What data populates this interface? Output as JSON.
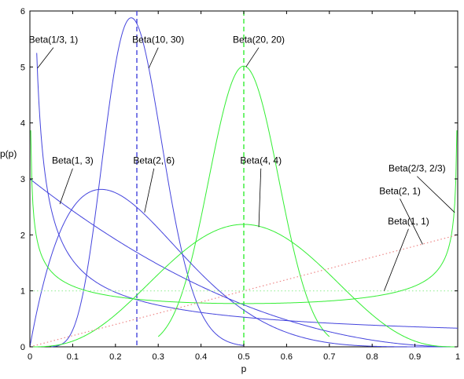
{
  "chart_data": {
    "type": "line",
    "xlabel": "p",
    "ylabel": "p(p)",
    "xlim": [
      0,
      1
    ],
    "ylim": [
      0,
      6
    ],
    "x_ticks": [
      "0",
      "0.1",
      "0.2",
      "0.3",
      "0.4",
      "0.5",
      "0.6",
      "0.7",
      "0.8",
      "0.9",
      "1"
    ],
    "y_ticks": [
      "0",
      "1",
      "2",
      "3",
      "4",
      "5",
      "6"
    ],
    "grid": false,
    "legend": "none",
    "colors": {
      "blue": "#4444dd",
      "green": "#33ee33",
      "dotted_red": "#ee8888",
      "dotted_green": "#99ee99",
      "leader": "#000000"
    },
    "series": [
      {
        "name": "Beta(1/3, 1)",
        "a": 0.3333,
        "b": 1,
        "color": "#4444dd",
        "style": "solid",
        "x": [
          0.016,
          0.05,
          0.1,
          0.2,
          0.3,
          0.4,
          0.5,
          0.6,
          0.7,
          0.8,
          0.9,
          1.0
        ],
        "y": [
          5.5,
          2.46,
          1.55,
          0.97,
          0.74,
          0.61,
          0.53,
          0.47,
          0.42,
          0.39,
          0.35,
          0.33
        ]
      },
      {
        "name": "Beta(10, 30)",
        "a": 10,
        "b": 30,
        "color": "#4444dd",
        "style": "solid",
        "x": [
          0.05,
          0.1,
          0.15,
          0.2,
          0.237,
          0.25,
          0.3,
          0.35,
          0.4,
          0.45,
          0.5
        ],
        "y": [
          0.0,
          0.36,
          2.7,
          5.4,
          5.88,
          5.8,
          3.9,
          1.5,
          0.35,
          0.05,
          0.0
        ]
      },
      {
        "name": "Beta(20, 20)",
        "a": 20,
        "b": 20,
        "color": "#33ee33",
        "style": "solid",
        "x": [
          0.3,
          0.35,
          0.4,
          0.45,
          0.5,
          0.55,
          0.6,
          0.65,
          0.7
        ],
        "y": [
          0.05,
          0.5,
          2.0,
          4.0,
          5.0,
          4.0,
          2.0,
          0.5,
          0.05
        ]
      },
      {
        "name": "Beta(1, 3)",
        "a": 1,
        "b": 3,
        "color": "#4444dd",
        "style": "solid",
        "x": [
          0,
          0.1,
          0.2,
          0.3,
          0.4,
          0.5,
          0.6,
          0.7,
          0.8,
          0.9,
          1
        ],
        "y": [
          3.0,
          2.43,
          1.92,
          1.47,
          1.08,
          0.75,
          0.48,
          0.27,
          0.12,
          0.03,
          0.0
        ]
      },
      {
        "name": "Beta(2, 6)",
        "a": 2,
        "b": 6,
        "color": "#4444dd",
        "style": "solid",
        "x": [
          0,
          0.1,
          0.167,
          0.2,
          0.3,
          0.4,
          0.5,
          0.6,
          0.7,
          0.8,
          1
        ],
        "y": [
          0.0,
          2.48,
          2.8,
          2.75,
          2.06,
          1.31,
          0.66,
          0.24,
          0.05,
          0.01,
          0.0
        ]
      },
      {
        "name": "Beta(4, 4)",
        "a": 4,
        "b": 4,
        "color": "#33ee33",
        "style": "solid",
        "x": [
          0,
          0.1,
          0.2,
          0.3,
          0.4,
          0.5,
          0.6,
          0.7,
          0.8,
          0.9,
          1
        ],
        "y": [
          0.0,
          0.1,
          0.57,
          1.3,
          1.94,
          2.19,
          1.94,
          1.3,
          0.57,
          0.1,
          0.0
        ]
      },
      {
        "name": "Beta(2/3, 2/3)",
        "a": 0.6667,
        "b": 0.6667,
        "color": "#33ee33",
        "style": "solid",
        "x": [
          0.002,
          0.05,
          0.1,
          0.2,
          0.3,
          0.4,
          0.5,
          0.6,
          0.7,
          0.8,
          0.9,
          0.95,
          0.998
        ],
        "y": [
          2.95,
          1.35,
          1.08,
          0.87,
          0.79,
          0.76,
          0.76,
          0.76,
          0.79,
          0.87,
          1.08,
          1.35,
          2.95
        ]
      },
      {
        "name": "Beta(2, 1)",
        "a": 2,
        "b": 1,
        "color": "#ee8888",
        "style": "dotted",
        "x": [
          0,
          0.5,
          1
        ],
        "y": [
          0,
          1,
          2
        ]
      },
      {
        "name": "Beta(1, 1)",
        "a": 1,
        "b": 1,
        "color": "#99ee99",
        "style": "dotted",
        "x": [
          0,
          0.5,
          1
        ],
        "y": [
          1,
          1,
          1
        ]
      }
    ],
    "vlines": [
      {
        "x": 0.25,
        "color": "#4444dd",
        "style": "dashed"
      },
      {
        "x": 0.5,
        "color": "#33ee33",
        "style": "dashed"
      }
    ],
    "annotations": [
      {
        "text": "Beta(1/3, 1)",
        "x": 0.055,
        "y": 5.43,
        "to_x": 0.018,
        "to_y": 4.98
      },
      {
        "text": "Beta(10, 30)",
        "x": 0.3,
        "y": 5.43,
        "to_x": 0.278,
        "to_y": 4.98
      },
      {
        "text": "Beta(20, 20)",
        "x": 0.535,
        "y": 5.43,
        "to_x": 0.505,
        "to_y": 5.0
      },
      {
        "text": "Beta(1, 3)",
        "x": 0.1,
        "y": 3.27,
        "to_x": 0.07,
        "to_y": 2.55
      },
      {
        "text": "Beta(2, 6)",
        "x": 0.29,
        "y": 3.27,
        "to_x": 0.268,
        "to_y": 2.4
      },
      {
        "text": "Beta(4, 4)",
        "x": 0.54,
        "y": 3.27,
        "to_x": 0.535,
        "to_y": 2.14
      },
      {
        "text": "Beta(2/3, 2/3)",
        "x": 0.905,
        "y": 3.13,
        "to_x": 0.993,
        "to_y": 2.4
      },
      {
        "text": "Beta(2, 1)",
        "x": 0.865,
        "y": 2.73,
        "to_x": 0.918,
        "to_y": 1.83
      },
      {
        "text": "Beta(1, 1)",
        "x": 0.885,
        "y": 2.19,
        "to_x": 0.828,
        "to_y": 1.0
      }
    ]
  }
}
